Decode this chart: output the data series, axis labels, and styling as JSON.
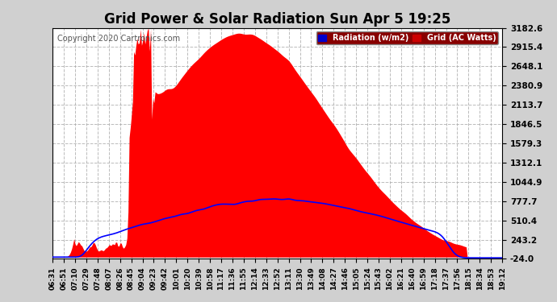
{
  "title": "Grid Power & Solar Radiation Sun Apr 5 19:25",
  "copyright": "Copyright 2020 Cartronics.com",
  "yticks": [
    3182.6,
    2915.4,
    2648.1,
    2380.9,
    2113.7,
    1846.5,
    1579.3,
    1312.1,
    1044.9,
    777.7,
    510.4,
    243.2,
    -24.0
  ],
  "ymin": -24.0,
  "ymax": 3182.6,
  "bg_color": "#f0f0f0",
  "plot_bg": "#ffffff",
  "grid_color": "#aaaaaa",
  "fill_color": "#ff0000",
  "line_color": "#0000ff",
  "legend_labels": [
    "Radiation (w/m2)",
    "Grid (AC Watts)"
  ],
  "legend_colors_bg": [
    "#0000cc",
    "#cc0000"
  ],
  "xtick_labels": [
    "06:31",
    "06:51",
    "07:10",
    "07:29",
    "07:48",
    "08:07",
    "08:26",
    "08:45",
    "09:04",
    "09:23",
    "09:42",
    "10:01",
    "10:20",
    "10:39",
    "10:58",
    "11:17",
    "11:36",
    "11:55",
    "12:14",
    "12:33",
    "12:52",
    "13:11",
    "13:30",
    "13:49",
    "14:08",
    "14:27",
    "14:46",
    "15:05",
    "15:24",
    "15:43",
    "16:02",
    "16:21",
    "16:40",
    "16:59",
    "17:18",
    "17:37",
    "17:56",
    "18:15",
    "18:34",
    "18:53",
    "19:12"
  ]
}
